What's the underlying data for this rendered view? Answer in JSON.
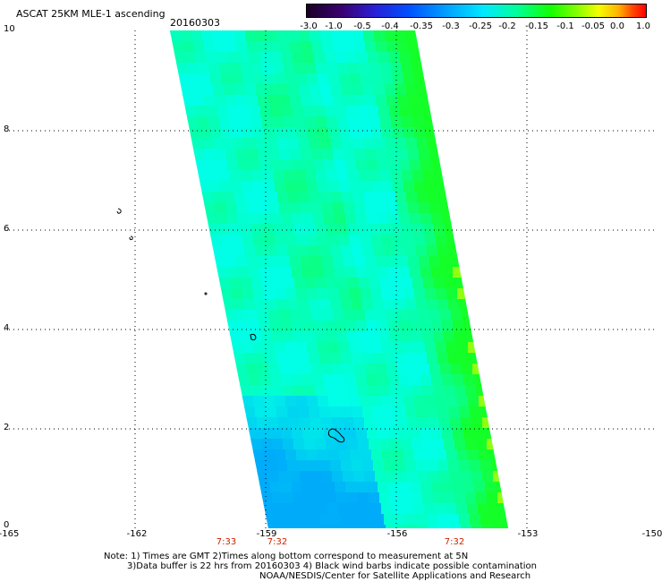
{
  "header": {
    "title": "ASCAT 25KM MLE-1 ascending",
    "date": "20160303"
  },
  "colorbar": {
    "labels": [
      "-3.0",
      "-1.0",
      "-0.5",
      "-0.4",
      "-0.35",
      "-0.3",
      "-0.25",
      "-0.2",
      "-0.15",
      "-0.1",
      "-0.05",
      "0.0",
      "1.0"
    ]
  },
  "axes": {
    "x_ticks": [
      "-165",
      "-162",
      "-159",
      "-156",
      "-153",
      "-150"
    ],
    "y_ticks": [
      "10",
      "8",
      "6",
      "4",
      "2",
      "0"
    ]
  },
  "times": [
    "7:33",
    "7:32",
    "7:32"
  ],
  "notes": {
    "line1": "Note: 1) Times are GMT 2)Times along bottom correspond to measurement at 5N",
    "line2": "3)Data buffer is 22 hrs from 20160303 4) Black wind barbs indicate possible contamination",
    "line3": "NOAA/NESDIS/Center for Satellite Applications and Research"
  },
  "colors": {
    "swath_main": "#00ffee",
    "swath_green": "#00ff60",
    "swath_blue": "#00b8ff",
    "grid": "#000000",
    "time_text": "#cc2200"
  }
}
